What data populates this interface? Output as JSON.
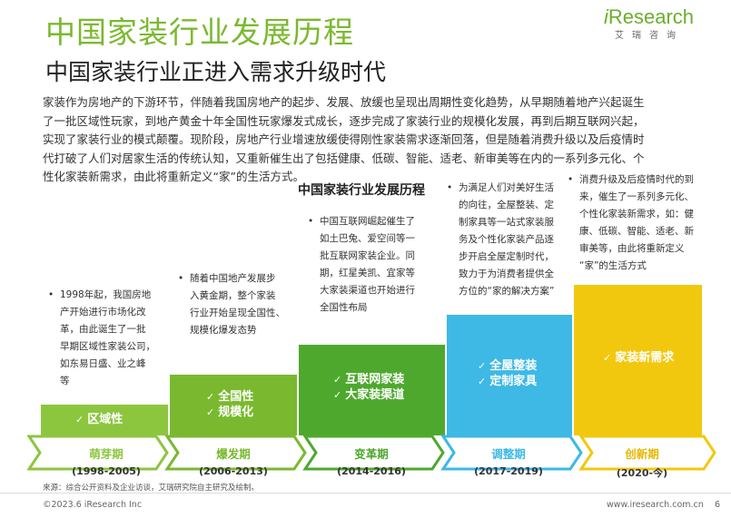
{
  "header": {
    "title": "中国家装行业发展历程",
    "subtitle": "中国家装行业正进入需求升级时代"
  },
  "logo": {
    "brand": "Research",
    "brand_i": "i",
    "tagline": "艾瑞咨询"
  },
  "intro": {
    "lines": [
      "家装作为房地产的下游环节，伴随着我国房地产的起步、发展、放缓也呈现出周期性变化趋势，从早期随着地产兴起诞生",
      "了一批区域性玩家，到地产黄金十年全国性玩家爆发式成长，逐步完成了家装行业的规模化发展，再到后期互联网兴起，",
      "实现了家装行业的模式颠覆。现阶段，房地产行业增速放缓使得刚性家装需求逐渐回落，但是随着消费升级以及后疫情时",
      "代打破了人们对居家生活的传统认知，又重新催生出了包括健康、低碳、智能、适老、新审美等在内的一系列多元化、个",
      "性化家装新需求，由此将重新定义“家”的生活方式。"
    ]
  },
  "chart_title": "中国家装行业发展历程",
  "colors": {
    "bar_greens": [
      "#8cc63f",
      "#7ab92f",
      "#4fa82e",
      "#3eb8e5",
      "#f2c80f"
    ],
    "title_green": "#7ab92f"
  },
  "stages": [
    {
      "phase": "萌芽期",
      "period": "(1998-2005)",
      "bar_labels": [
        "区域性"
      ],
      "description": [
        "1998年起，我国房地",
        "产开始进行市场化改",
        "革，由此诞生了一批",
        "早期区域性家装公司，",
        "如东易日盛、业之峰",
        "等"
      ]
    },
    {
      "phase": "爆发期",
      "period": "(2006-2013)",
      "bar_labels": [
        "全国性",
        "规模化"
      ],
      "description": [
        "随着中国地产发展步",
        "入黄金期，整个家装",
        "行业开始呈现全国性、",
        "规模化爆发态势"
      ]
    },
    {
      "phase": "变革期",
      "period": "(2014-2016)",
      "bar_labels": [
        "互联网家装",
        "大家装渠道"
      ],
      "description": [
        "中国互联网崛起催生了",
        "如土巴兔、爱空间等一",
        "批互联网家装企业。同",
        "期，红星美凯、宜家等",
        "大家装渠道也开始进行",
        "全国性布局"
      ]
    },
    {
      "phase": "调整期",
      "period": "(2017-2019)",
      "bar_labels": [
        "全屋整装",
        "定制家具"
      ],
      "description": [
        "为满足人们对美好生活",
        "的向往，全屋整装、定",
        "制家具等一站式家装服",
        "务及个性化家装产品逐",
        "步开启全屋定制时代，",
        "致力于为消费者提供全",
        "方位的“家的解决方案”"
      ]
    },
    {
      "phase": "创新期",
      "period": "(2020-今)",
      "bar_labels": [
        "家装新需求"
      ],
      "description": [
        "消费升级及后疫情时代的到",
        "来，催生了一系列多元化、",
        "个性化家装新需求，如：健",
        "康、低碳、智能、适老、新",
        "审美等，由此将重新定义",
        "“家”的生活方式"
      ]
    }
  ],
  "footer": {
    "source": "来源：综合公开资料及企业访谈，艾瑞研究院自主研究及绘制。",
    "copyright": "©2023.6 iResearch Inc",
    "url": "www.iresearch.com.cn",
    "page": "6"
  }
}
